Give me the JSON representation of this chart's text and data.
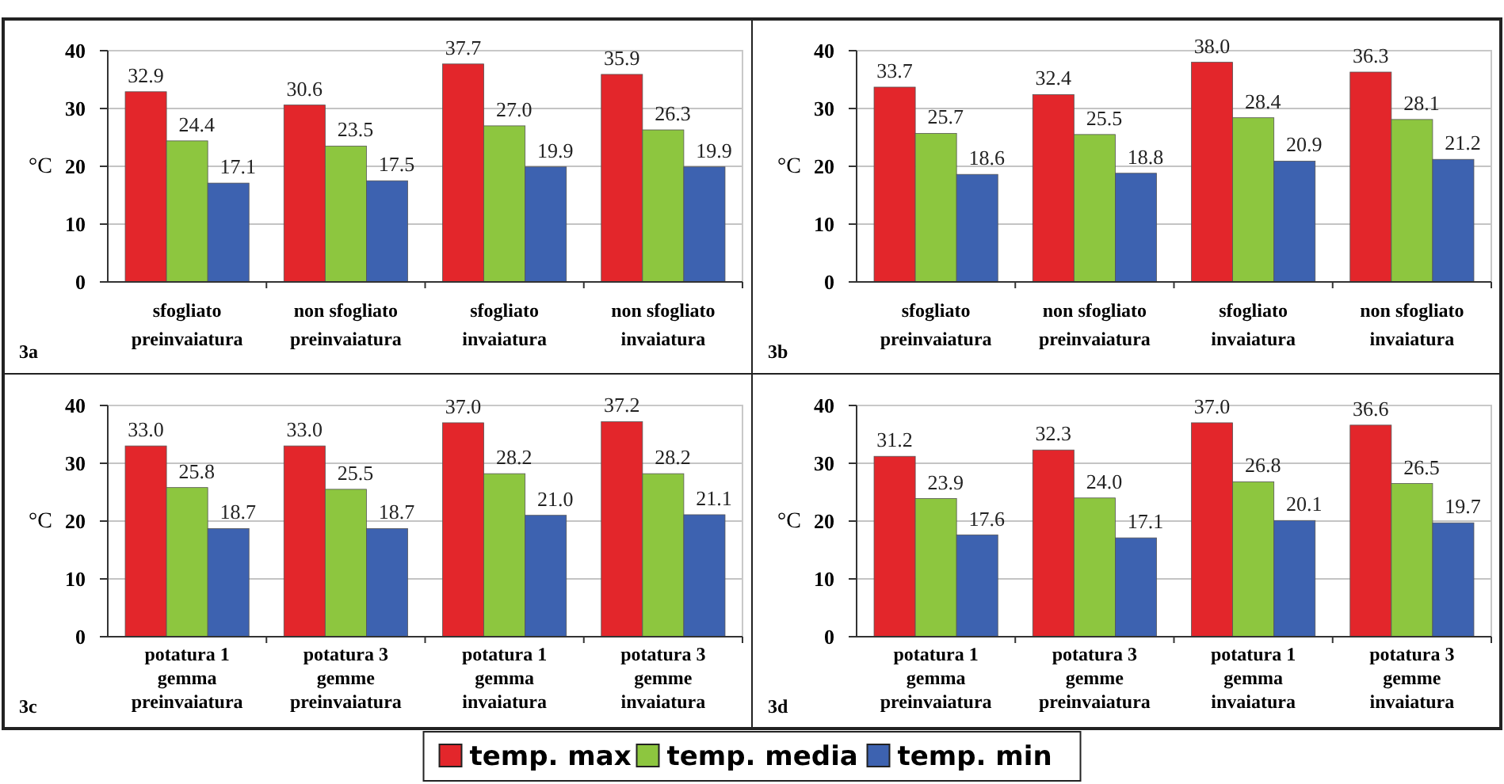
{
  "chart_data": [
    {
      "type": "bar",
      "ylabel": "°C",
      "annotations": [
        "3a"
      ],
      "categories": [
        "sfogliato\npreinvaiatura",
        "non sfogliato\npreinvaiatura",
        "sfogliato\ninvaiatura",
        "non sfogliato\ninvaiatura"
      ],
      "ylim": [
        0,
        40
      ],
      "yticks": [
        0,
        10,
        20,
        30,
        40
      ],
      "grid": "y",
      "series": [
        {
          "color": "#e3262b",
          "values": [
            32.9,
            30.6,
            37.7,
            35.9
          ],
          "value_labels": [
            "32.9",
            "30.6",
            "37.7",
            "35.9"
          ]
        },
        {
          "color": "#8dc63f",
          "values": [
            24.4,
            23.5,
            27.0,
            26.3
          ],
          "value_labels": [
            "24.4",
            "23.5",
            "27.0",
            "26.3"
          ]
        },
        {
          "color": "#3d62b0",
          "values": [
            17.1,
            17.5,
            19.9,
            19.9
          ],
          "value_labels": [
            "17.1",
            "17.5",
            "19.9",
            "19.9"
          ]
        }
      ]
    },
    {
      "type": "bar",
      "ylabel": "°C",
      "annotations": [
        "3b"
      ],
      "categories": [
        "sfogliato\npreinvaiatura",
        "non sfogliato\npreinvaiatura",
        "sfogliato\ninvaiatura",
        "non sfogliato\ninvaiatura"
      ],
      "ylim": [
        0,
        40
      ],
      "yticks": [
        0,
        10,
        20,
        30,
        40
      ],
      "grid": "y",
      "series": [
        {
          "color": "#e3262b",
          "values": [
            33.7,
            32.4,
            38.0,
            36.3
          ],
          "value_labels": [
            "33.7",
            "32.4",
            "38.0",
            "36.3"
          ]
        },
        {
          "color": "#8dc63f",
          "values": [
            25.7,
            25.5,
            28.4,
            28.1
          ],
          "value_labels": [
            "25.7",
            "25.5",
            "28.4",
            "28.1"
          ]
        },
        {
          "color": "#3d62b0",
          "values": [
            18.6,
            18.8,
            20.9,
            21.2
          ],
          "value_labels": [
            "18.6",
            "18.8",
            "20.9",
            "21.2"
          ]
        }
      ]
    },
    {
      "type": "bar",
      "ylabel": "°C",
      "annotations": [
        "3c"
      ],
      "categories": [
        "potatura 1\ngemma\npreinvaiatura",
        "potatura 3\ngemme\npreinvaiatura",
        "potatura 1\ngemma\ninvaiatura",
        "potatura 3\ngemme\ninvaiatura"
      ],
      "ylim": [
        0,
        40
      ],
      "yticks": [
        0,
        10,
        20,
        30,
        40
      ],
      "grid": "y",
      "series": [
        {
          "color": "#e3262b",
          "values": [
            33.0,
            33.0,
            37.0,
            37.2
          ],
          "value_labels": [
            "33.0",
            "33.0",
            "37.0",
            "37.2"
          ]
        },
        {
          "color": "#8dc63f",
          "values": [
            25.8,
            25.5,
            28.2,
            28.2
          ],
          "value_labels": [
            "25.8",
            "25.5",
            "28.2",
            "28.2"
          ]
        },
        {
          "color": "#3d62b0",
          "values": [
            18.7,
            18.7,
            21.0,
            21.1
          ],
          "value_labels": [
            "18.7",
            "18.7",
            "21.0",
            "21.1"
          ]
        }
      ]
    },
    {
      "type": "bar",
      "ylabel": "°C",
      "annotations": [
        "3d"
      ],
      "categories": [
        "potatura 1\ngemma\npreinvaiatura",
        "potatura 3\ngemme\npreinvaiatura",
        "potatura 1\ngemma\ninvaiatura",
        "potatura 3\ngemme\ninvaiatura"
      ],
      "ylim": [
        0,
        40
      ],
      "yticks": [
        0,
        10,
        20,
        30,
        40
      ],
      "grid": "y",
      "legend": "bottom",
      "series": [
        {
          "name": "temp. max",
          "color": "#e3262b",
          "values": [
            31.2,
            32.3,
            37.0,
            36.6
          ],
          "value_labels": [
            "31.2",
            "32.3",
            "37.0",
            "36.6"
          ]
        },
        {
          "name": "temp. media",
          "color": "#8dc63f",
          "values": [
            23.9,
            24.0,
            26.8,
            26.5
          ],
          "value_labels": [
            "23.9",
            "24.0",
            "26.8",
            "26.5"
          ]
        },
        {
          "name": "temp. min",
          "color": "#3d62b0",
          "values": [
            17.6,
            17.1,
            20.1,
            19.7
          ],
          "value_labels": [
            "17.6",
            "17.1",
            "20.1",
            "19.7"
          ]
        }
      ]
    }
  ]
}
